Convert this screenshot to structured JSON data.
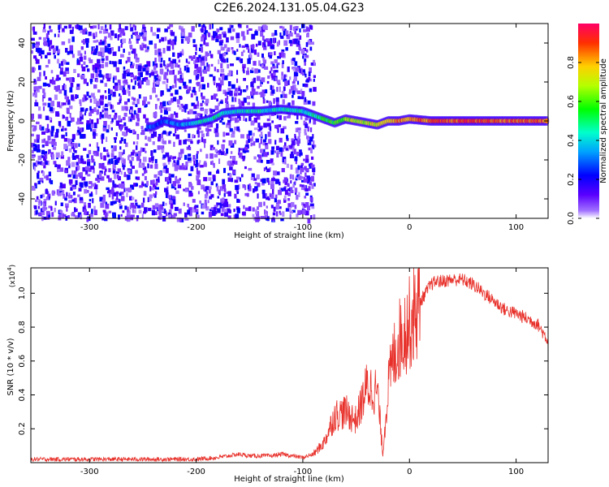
{
  "title": "C2E6.2024.131.05.04.G23",
  "colors": {
    "snr_line": "#e8302a",
    "spectrogram_low": "#7f00ff",
    "spectrogram_high": "#ff0000",
    "axes": "#000000"
  },
  "chart_data": [
    {
      "type": "heatmap",
      "panel": "top",
      "title": "C2E6.2024.131.05.04.G23",
      "xlabel": "Height of straight line (km)",
      "ylabel": "Frequency (Hz)",
      "xlim": [
        -355,
        130
      ],
      "ylim": [
        -50,
        50
      ],
      "xticks": [
        -300,
        -200,
        -100,
        0,
        100
      ],
      "yticks": [
        -40,
        -20,
        0,
        20,
        40
      ],
      "colorbar": {
        "label": "Normalized spectral amplitude",
        "range": [
          0,
          1
        ],
        "ticks": [
          0.0,
          0.2,
          0.4,
          0.6,
          0.8
        ],
        "tick_labels": [
          "0.0",
          "0.2",
          "0.4",
          "0.6",
          "0.8"
        ],
        "colormap": "rainbow (violet to red)"
      },
      "signal_trace": {
        "x": [
          -245,
          -240,
          -230,
          -215,
          -200,
          -185,
          -175,
          -160,
          -140,
          -120,
          -100,
          -90,
          -80,
          -70,
          -60,
          -50,
          -40,
          -30,
          -20,
          -10,
          0,
          20,
          40,
          60,
          80,
          100,
          130
        ],
        "frequency": [
          -3,
          -3,
          0,
          -2,
          -1,
          1,
          4,
          5,
          5,
          6,
          5,
          3,
          1,
          -1,
          1,
          0,
          -1,
          -2,
          0,
          0,
          1,
          0,
          0,
          0,
          0,
          0,
          0
        ],
        "amplitude": [
          0.35,
          0.35,
          0.35,
          0.4,
          0.45,
          0.55,
          0.5,
          0.5,
          0.5,
          0.5,
          0.5,
          0.55,
          0.6,
          0.65,
          0.7,
          0.75,
          0.75,
          0.8,
          0.85,
          0.9,
          0.9,
          0.95,
          0.95,
          0.95,
          0.95,
          0.95,
          0.95
        ]
      },
      "noise_region_x": [
        -355,
        -90
      ]
    },
    {
      "type": "line",
      "panel": "bottom",
      "xlabel": "Height of straight line (km)",
      "ylabel": "SNR (10 * v/v)",
      "y_multiplier": "(x10^4)",
      "y_multiplier_base": "(x10",
      "y_multiplier_exp": "4",
      "y_multiplier_close": ")",
      "xlim": [
        -355,
        130
      ],
      "ylim": [
        0,
        1.15
      ],
      "xticks": [
        -300,
        -200,
        -100,
        0,
        100
      ],
      "yticks": [
        0.2,
        0.4,
        0.6,
        0.8,
        1.0
      ],
      "ytick_labels": [
        "0.2",
        "0.4",
        "0.6",
        "0.8",
        "1.0"
      ],
      "series": [
        {
          "x": [
            -355,
            -300,
            -250,
            -200,
            -180,
            -170,
            -160,
            -150,
            -130,
            -120,
            -110,
            -100,
            -90,
            -80,
            -70,
            -60,
            -50,
            -45,
            -40,
            -30,
            -25,
            -20,
            -15,
            -10,
            -5,
            0,
            5,
            10,
            15,
            20,
            25,
            30,
            40,
            50,
            60,
            70,
            80,
            90,
            100,
            110,
            120,
            130
          ],
          "y": [
            0.02,
            0.02,
            0.02,
            0.02,
            0.03,
            0.04,
            0.05,
            0.04,
            0.04,
            0.05,
            0.04,
            0.03,
            0.05,
            0.12,
            0.28,
            0.3,
            0.25,
            0.35,
            0.45,
            0.42,
            0.05,
            0.45,
            0.62,
            0.72,
            0.78,
            0.82,
            0.88,
            0.95,
            1.0,
            1.05,
            1.07,
            1.07,
            1.08,
            1.08,
            1.05,
            1.0,
            0.95,
            0.9,
            0.88,
            0.85,
            0.82,
            0.72
          ]
        }
      ]
    }
  ]
}
